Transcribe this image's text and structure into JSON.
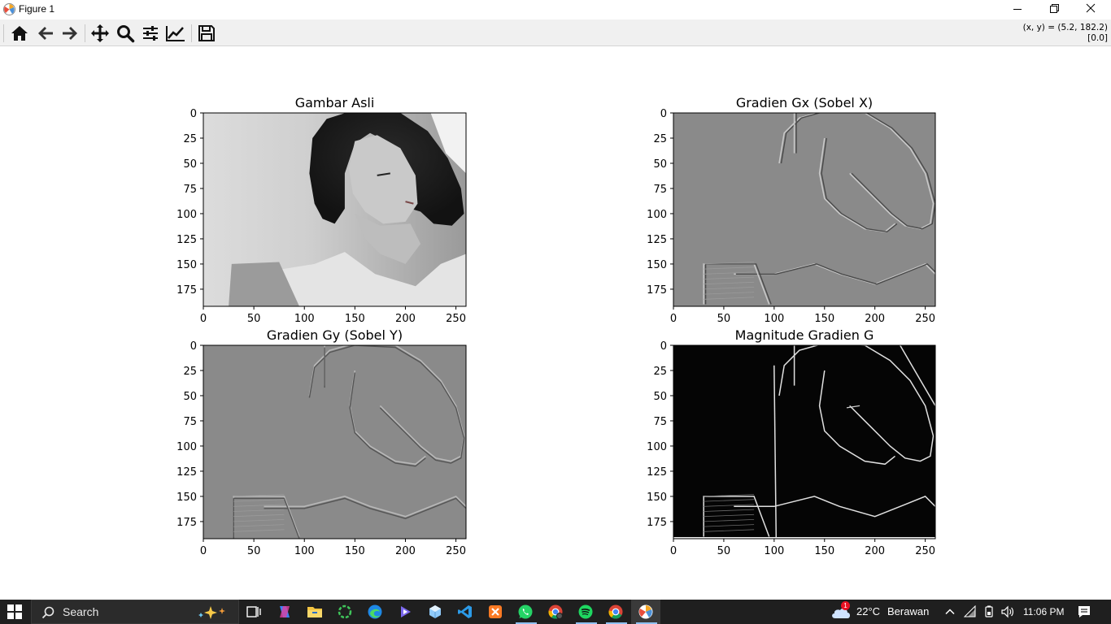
{
  "window": {
    "title": "Figure 1"
  },
  "toolbar": {
    "buttons": [
      {
        "name": "home",
        "icon": "home-icon"
      },
      {
        "name": "back",
        "icon": "arrow-left-icon"
      },
      {
        "name": "forward",
        "icon": "arrow-right-icon"
      },
      {
        "name": "pan",
        "icon": "move-icon"
      },
      {
        "name": "zoom",
        "icon": "magnifier-icon"
      },
      {
        "name": "configure-subplots",
        "icon": "sliders-icon"
      },
      {
        "name": "edit-axis",
        "icon": "line-chart-icon"
      },
      {
        "name": "save",
        "icon": "floppy-icon"
      }
    ],
    "coords_line1": "(x, y) = (5.2, 182.2)",
    "coords_line2": "[0.0]"
  },
  "chart_data": [
    {
      "type": "image",
      "title": "Gambar Asli",
      "xlim": [
        0,
        260
      ],
      "ylim": [
        192,
        0
      ],
      "xticks": [
        "0",
        "50",
        "100",
        "150",
        "200",
        "250"
      ],
      "yticks": [
        "0",
        "25",
        "50",
        "75",
        "100",
        "125",
        "150",
        "175"
      ],
      "colormap": "gray"
    },
    {
      "type": "image",
      "title": "Gradien Gx (Sobel X)",
      "xlim": [
        0,
        260
      ],
      "ylim": [
        192,
        0
      ],
      "xticks": [
        "0",
        "50",
        "100",
        "150",
        "200",
        "250"
      ],
      "yticks": [
        "0",
        "25",
        "50",
        "75",
        "100",
        "125",
        "150",
        "175"
      ],
      "colormap": "gray"
    },
    {
      "type": "image",
      "title": "Gradien Gy (Sobel Y)",
      "xlim": [
        0,
        260
      ],
      "ylim": [
        192,
        0
      ],
      "xticks": [
        "0",
        "50",
        "100",
        "150",
        "200",
        "250"
      ],
      "yticks": [
        "0",
        "25",
        "50",
        "75",
        "100",
        "125",
        "150",
        "175"
      ],
      "colormap": "gray"
    },
    {
      "type": "image",
      "title": "Magnitude Gradien G",
      "xlim": [
        0,
        260
      ],
      "ylim": [
        192,
        0
      ],
      "xticks": [
        "0",
        "50",
        "100",
        "150",
        "200",
        "250"
      ],
      "yticks": [
        "0",
        "25",
        "50",
        "75",
        "100",
        "125",
        "150",
        "175"
      ],
      "colormap": "gray"
    }
  ],
  "taskbar": {
    "search_placeholder": "Search",
    "weather_temp": "22°C",
    "weather_desc": "Berawan",
    "weather_badge": "1",
    "time": "11:06 PM",
    "icons": [
      "start-icon",
      "search-icon",
      "copilot-icon",
      "task-view-icon",
      "copilot-app-icon",
      "file-explorer-icon",
      "refresh-app-icon",
      "edge-icon",
      "media-icon",
      "box-icon",
      "vscode-icon",
      "xampp-icon",
      "whatsapp-icon",
      "chrome-profile-icon",
      "spotify-icon",
      "chrome-icon",
      "matplotlib-icon"
    ]
  }
}
